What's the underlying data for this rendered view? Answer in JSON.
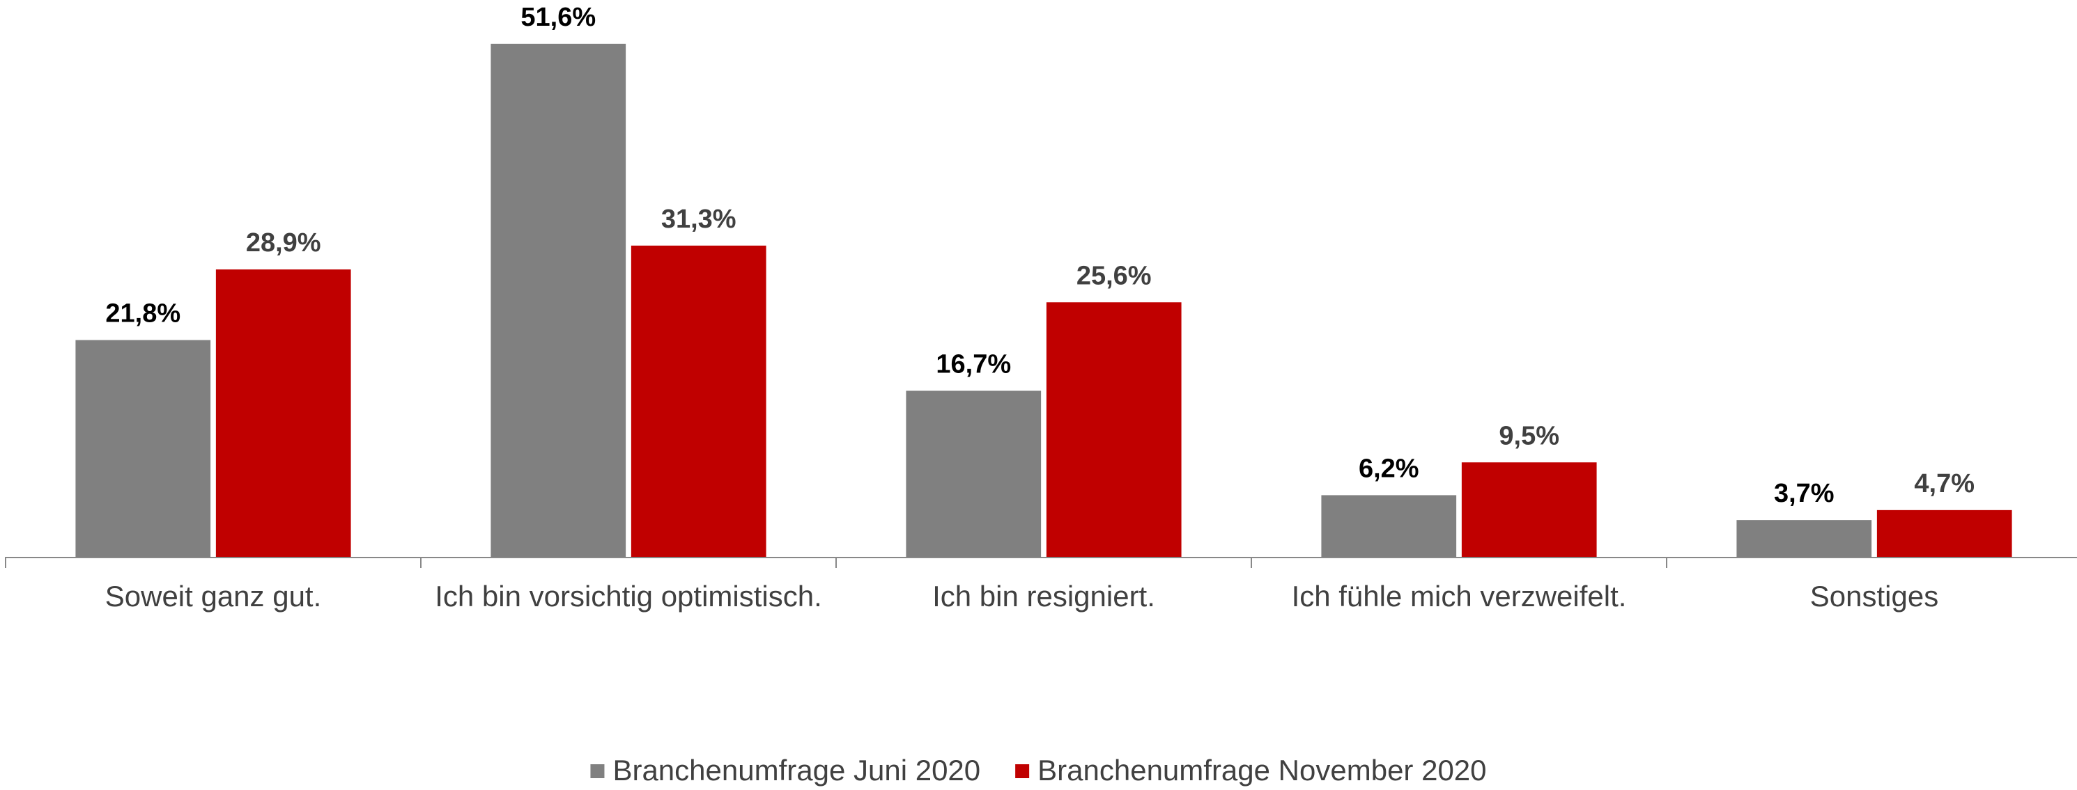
{
  "chart_data": {
    "type": "bar",
    "categories": [
      "Soweit ganz gut.",
      "Ich bin vorsichtig optimistisch.",
      "Ich bin resigniert.",
      "Ich fühle mich verzweifelt.",
      "Sonstiges"
    ],
    "series": [
      {
        "name": "Branchenumfrage Juni 2020",
        "color": "#808080",
        "values": [
          21.8,
          51.6,
          16.7,
          6.2,
          3.7
        ],
        "value_labels": [
          "21,8%",
          "51,6%",
          "16,7%",
          "6,2%",
          "3,7%"
        ]
      },
      {
        "name": "Branchenumfrage November 2020",
        "color": "#c00000",
        "values": [
          28.9,
          31.3,
          25.6,
          9.5,
          4.7
        ],
        "value_labels": [
          "28,9%",
          "31,3%",
          "25,6%",
          "9,5%",
          "4,7%"
        ]
      }
    ],
    "ylim": [
      0,
      56
    ],
    "legend": "bottom"
  }
}
